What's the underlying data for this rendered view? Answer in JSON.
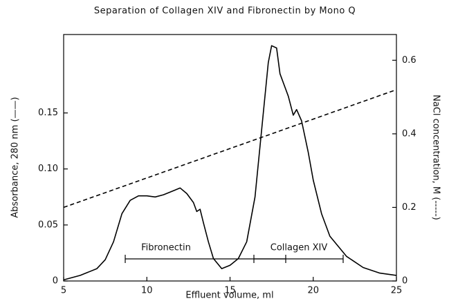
{
  "chart_data": {
    "type": "line",
    "title": "Separation of Collagen XIV and Fibronectin by Mono Q",
    "x_label": "Effluent volume, ml",
    "y_label": "Absorbance, 280 nm (——)",
    "y2_label": "NaCl concentration, M (-----)",
    "annotations": [
      "Fibronectin",
      "Collagen XIV"
    ],
    "xlim": [
      5,
      25
    ],
    "xticks": [
      5,
      10,
      15,
      20,
      25
    ],
    "ylim": [
      0,
      0.22
    ],
    "yticks": [
      0,
      0.05,
      {
        "value": 0.1,
        "label": "0.10"
      },
      0.15
    ],
    "y2lim": [
      0,
      0.67
    ],
    "y2ticks": [
      0,
      0.2,
      0.4,
      0.6
    ],
    "series": [
      {
        "color": "#000000",
        "style": "solid",
        "x": [
          5,
          6,
          7,
          7.5,
          8,
          8.5,
          9,
          9.5,
          10,
          10.5,
          11,
          11.5,
          12,
          12.4,
          12.8,
          13,
          13.2,
          13.4,
          13.7,
          14,
          14.5,
          15,
          15.5,
          16,
          16.5,
          17,
          17.3,
          17.5,
          17.8,
          18,
          18.5,
          18.8,
          19,
          19.3,
          19.7,
          20,
          20.5,
          21,
          22,
          23,
          24,
          25
        ],
        "values": [
          0.001,
          0.005,
          0.011,
          0.019,
          0.035,
          0.06,
          0.072,
          0.076,
          0.076,
          0.075,
          0.077,
          0.08,
          0.083,
          0.078,
          0.07,
          0.062,
          0.064,
          0.052,
          0.035,
          0.02,
          0.011,
          0.014,
          0.02,
          0.035,
          0.075,
          0.15,
          0.195,
          0.21,
          0.208,
          0.185,
          0.165,
          0.148,
          0.153,
          0.143,
          0.115,
          0.09,
          0.06,
          0.04,
          0.022,
          0.012,
          0.007,
          0.005
        ]
      },
      {
        "color": "#000000",
        "style": "dashed",
        "axis": "y2",
        "x": [
          5,
          25
        ],
        "values": [
          0.2,
          0.52
        ]
      }
    ]
  }
}
